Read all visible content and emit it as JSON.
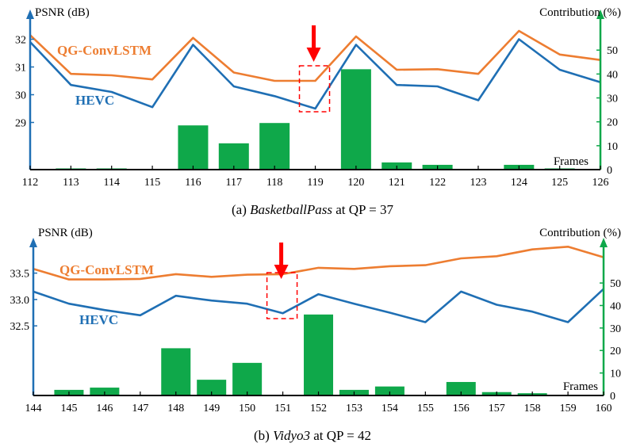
{
  "colors": {
    "qg": "#ED7D31",
    "hevc": "#1F6FB4",
    "bar": "#0FA84A",
    "left_axis": "#1F6FB4",
    "right_axis": "#0FA84A",
    "marker": "#FF0000"
  },
  "chart_data": [
    {
      "type": "line+bar",
      "caption_prefix": "(a) ",
      "caption_italic": "BasketballPass",
      "caption_suffix": " at QP = 37",
      "ylabel": "PSNR (dB)",
      "y2label": "Contribution (%)",
      "xlabel": "Frames",
      "x": [
        112,
        113,
        114,
        115,
        116,
        117,
        118,
        119,
        120,
        121,
        122,
        123,
        124,
        125,
        126
      ],
      "y_ticks": [
        "29",
        "30",
        "31",
        "32"
      ],
      "y2_ticks": [
        "0",
        "10",
        "20",
        "30",
        "40",
        "50"
      ],
      "ylim": [
        27.3,
        32.9
      ],
      "y2lim": [
        0,
        65
      ],
      "series": [
        {
          "name": "QG-ConvLSTM",
          "axis": "left",
          "values": [
            32.15,
            30.75,
            30.7,
            30.55,
            32.05,
            30.8,
            30.5,
            30.5,
            32.1,
            30.9,
            30.92,
            30.75,
            32.3,
            31.45,
            31.25
          ]
        },
        {
          "name": "HEVC",
          "axis": "left",
          "values": [
            31.9,
            30.35,
            30.1,
            29.55,
            31.8,
            30.3,
            29.95,
            29.5,
            31.8,
            30.35,
            30.3,
            29.8,
            32.0,
            30.9,
            30.45
          ]
        }
      ],
      "bars": [
        0,
        0.5,
        0.5,
        0,
        18.5,
        11,
        19.5,
        0,
        42,
        3,
        2,
        0,
        2,
        0.5,
        0
      ],
      "highlight_frame": 119
    },
    {
      "type": "line+bar",
      "caption_prefix": "(b) ",
      "caption_italic": "Vidyo3",
      "caption_suffix": " at QP = 42",
      "ylabel": "PSNR (dB)",
      "y2label": "Contribution (%)",
      "xlabel": "Frames",
      "x": [
        144,
        145,
        146,
        147,
        148,
        149,
        150,
        151,
        152,
        153,
        154,
        155,
        156,
        157,
        158,
        159,
        160
      ],
      "y_ticks": [
        "32.5",
        "33.0",
        "33.5"
      ],
      "y2_ticks": [
        "0",
        "10",
        "20",
        "30",
        "40",
        "50"
      ],
      "ylim": [
        31.18,
        34.08
      ],
      "y2lim": [
        0,
        68
      ],
      "series": [
        {
          "name": "QG-ConvLSTM",
          "axis": "left",
          "values": [
            33.58,
            33.38,
            33.38,
            33.39,
            33.48,
            33.43,
            33.47,
            33.48,
            33.6,
            33.58,
            33.63,
            33.65,
            33.78,
            33.82,
            33.95,
            34.0,
            33.8
          ]
        },
        {
          "name": "HEVC",
          "axis": "left",
          "values": [
            33.15,
            32.92,
            32.8,
            32.7,
            33.07,
            32.98,
            32.92,
            32.74,
            33.1,
            32.92,
            32.75,
            32.57,
            33.15,
            32.9,
            32.77,
            32.57,
            33.2
          ]
        }
      ],
      "bars": [
        0,
        2.5,
        3.5,
        0,
        21,
        7,
        14.5,
        0,
        36,
        2.5,
        4,
        0,
        6,
        1.5,
        1,
        0,
        0
      ],
      "highlight_frame": 151
    }
  ]
}
